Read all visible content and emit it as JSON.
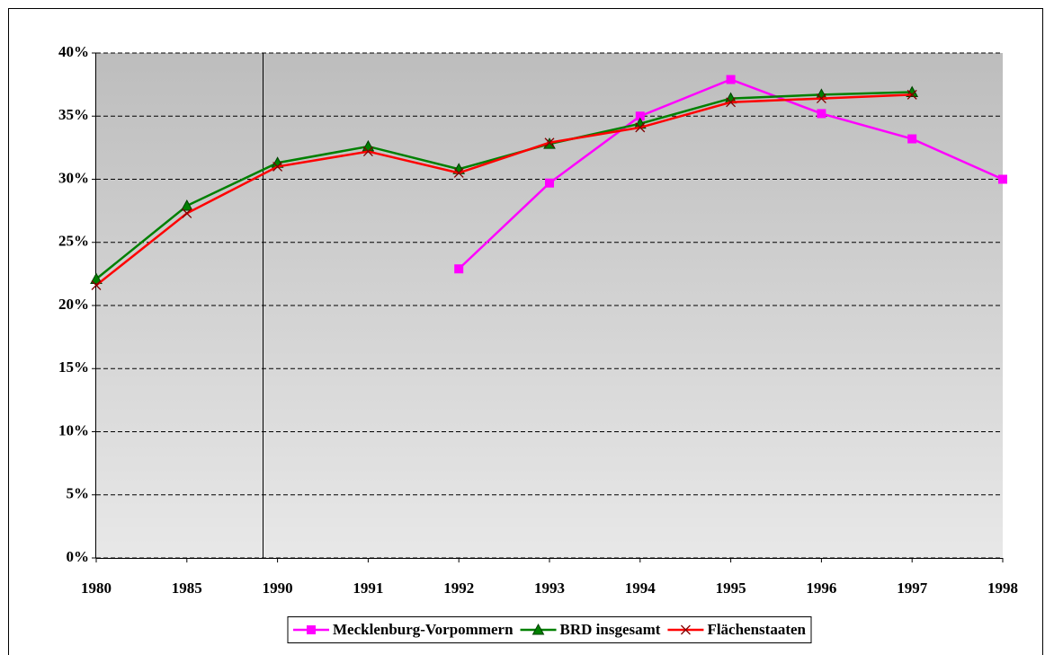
{
  "chart_data": {
    "type": "line",
    "categories": [
      "1980",
      "1985",
      "1990",
      "1991",
      "1992",
      "1993",
      "1994",
      "1995",
      "1996",
      "1997",
      "1998"
    ],
    "series": [
      {
        "name": "Mecklenburg-Vorpommern",
        "color": "#ff00ff",
        "marker": "square",
        "values": [
          null,
          null,
          null,
          null,
          22.9,
          29.7,
          35.0,
          37.9,
          35.2,
          33.2,
          30.0
        ]
      },
      {
        "name": "BRD insgesamt",
        "color": "#008000",
        "marker": "triangle",
        "values": [
          22.1,
          27.9,
          31.3,
          32.6,
          30.8,
          32.8,
          34.4,
          36.4,
          36.7,
          36.9,
          null
        ]
      },
      {
        "name": "Flächenstaaten",
        "color": "#ff0000",
        "marker": "x",
        "values": [
          21.6,
          27.3,
          31.0,
          32.2,
          30.5,
          32.9,
          34.1,
          36.1,
          36.4,
          36.7,
          null
        ]
      }
    ],
    "ylim": [
      0,
      40
    ],
    "yticks": [
      {
        "value": 0,
        "label": "0%"
      },
      {
        "value": 5,
        "label": "5%"
      },
      {
        "value": 10,
        "label": "10%"
      },
      {
        "value": 15,
        "label": "15%"
      },
      {
        "value": 20,
        "label": "20%"
      },
      {
        "value": 25,
        "label": "25%"
      },
      {
        "value": 30,
        "label": "30%"
      },
      {
        "value": 35,
        "label": "35%"
      },
      {
        "value": 40,
        "label": "40%"
      }
    ],
    "grid": true,
    "legend": "bottom"
  }
}
